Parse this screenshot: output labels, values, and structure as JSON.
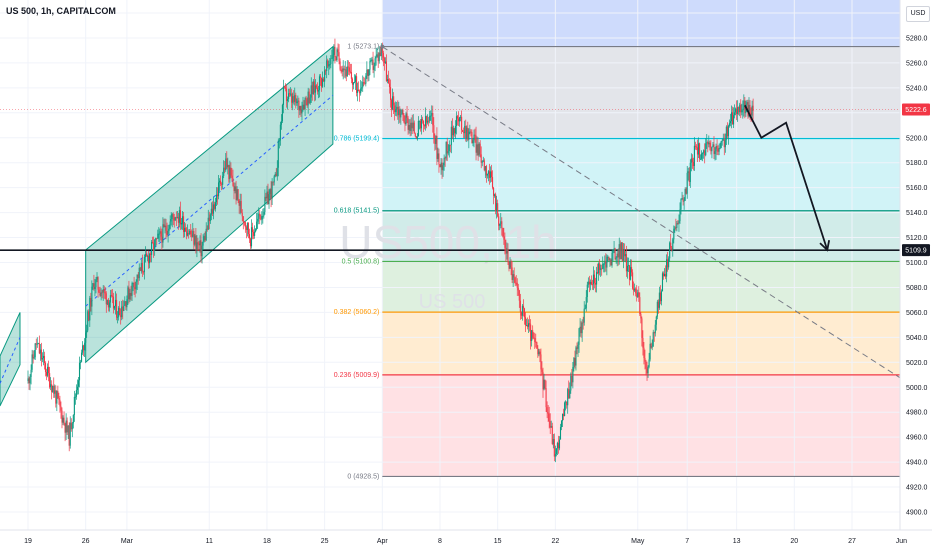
{
  "chart_data": {
    "type": "candlestick",
    "title": "US 500, 1h, CAPITALCOM",
    "watermark_large": "US500, 1h",
    "watermark_small": "US 500",
    "currency": "USD",
    "ylim": [
      4900,
      5300
    ],
    "y_ticks": [
      4900,
      4920,
      4940,
      4960,
      4980,
      5000,
      5020,
      5040,
      5060,
      5080,
      5100,
      5120,
      5140,
      5160,
      5180,
      5200,
      5220,
      5240,
      5260,
      5280,
      5300
    ],
    "x_labels": [
      {
        "label": "19",
        "day": 0
      },
      {
        "label": "26",
        "day": 7
      },
      {
        "label": "Mar",
        "day": 12
      },
      {
        "label": "11",
        "day": 22
      },
      {
        "label": "18",
        "day": 29
      },
      {
        "label": "25",
        "day": 36
      },
      {
        "label": "Apr",
        "day": 43
      },
      {
        "label": "8",
        "day": 50
      },
      {
        "label": "15",
        "day": 57
      },
      {
        "label": "22",
        "day": 64
      },
      {
        "label": "May",
        "day": 74
      },
      {
        "label": "7",
        "day": 80
      },
      {
        "label": "13",
        "day": 86
      },
      {
        "label": "20",
        "day": 93
      },
      {
        "label": "27",
        "day": 100
      },
      {
        "label": "Jun",
        "day": 106
      }
    ],
    "price_labels": {
      "current": "5222.6",
      "horizontal_level": "5109.9"
    },
    "horizontal_level": 5109.9,
    "current_price": 5222.6,
    "fib_levels": [
      {
        "ratio": "1",
        "value": 5273.1,
        "label": "1 (5273.1)",
        "color": "#787b86"
      },
      {
        "ratio": "0.786",
        "value": 5199.4,
        "label": "0.786 (5199.4)",
        "color": "#00bcd4"
      },
      {
        "ratio": "0.618",
        "value": 5141.5,
        "label": "0.618 (5141.5)",
        "color": "#089981"
      },
      {
        "ratio": "0.5",
        "value": 5100.8,
        "label": "0.5 (5100.8)",
        "color": "#4caf50"
      },
      {
        "ratio": "0.382",
        "value": 5060.2,
        "label": "0.382 (5060.2)",
        "color": "#ff9800"
      },
      {
        "ratio": "0.236",
        "value": 5009.9,
        "label": "0.236 (5009.9)",
        "color": "#f23645"
      },
      {
        "ratio": "0",
        "value": 4928.5,
        "label": "0 (4928.5)",
        "color": "#787b86"
      }
    ],
    "fib_zone_colors": [
      "#d1d4dc",
      "#b2ebf2",
      "#b2dfdb",
      "#c8e6c9",
      "#ffe0b2",
      "#ffcdd2"
    ],
    "top_zone_color": "#c6d5fb",
    "channel_color": "#089981",
    "projection_path": [
      {
        "day": 87,
        "price": 5226
      },
      {
        "day": 89,
        "price": 5200
      },
      {
        "day": 92,
        "price": 5212
      },
      {
        "day": 97,
        "price": 5110
      }
    ],
    "trendline": {
      "start": {
        "day": 43,
        "price": 5273
      },
      "end": {
        "day": 110,
        "price": 4990
      }
    },
    "candles": {
      "start_day": 0,
      "hours_per_day": 8,
      "up_color": "#089981",
      "down_color": "#f23645",
      "waypoints": [
        [
          0,
          5005
        ],
        [
          1,
          5035
        ],
        [
          3,
          5000
        ],
        [
          5,
          4960
        ],
        [
          6,
          5005
        ],
        [
          8,
          5085
        ],
        [
          11,
          5060
        ],
        [
          15,
          5110
        ],
        [
          18,
          5140
        ],
        [
          21,
          5110
        ],
        [
          24,
          5180
        ],
        [
          27,
          5120
        ],
        [
          30,
          5165
        ],
        [
          31,
          5235
        ],
        [
          33,
          5225
        ],
        [
          36,
          5250
        ],
        [
          37,
          5270
        ],
        [
          40,
          5240
        ],
        [
          42,
          5260
        ],
        [
          43,
          5272
        ],
        [
          44,
          5230
        ],
        [
          47,
          5205
        ],
        [
          49,
          5215
        ],
        [
          50,
          5175
        ],
        [
          52,
          5215
        ],
        [
          54,
          5200
        ],
        [
          56,
          5170
        ],
        [
          58,
          5110
        ],
        [
          60,
          5060
        ],
        [
          62,
          5025
        ],
        [
          64,
          4945
        ],
        [
          66,
          5010
        ],
        [
          68,
          5080
        ],
        [
          70,
          5100
        ],
        [
          72,
          5110
        ],
        [
          74,
          5075
        ],
        [
          75,
          5010
        ],
        [
          77,
          5085
        ],
        [
          79,
          5140
        ],
        [
          81,
          5190
        ],
        [
          84,
          5190
        ],
        [
          86,
          5225
        ],
        [
          88,
          5222
        ]
      ]
    }
  }
}
